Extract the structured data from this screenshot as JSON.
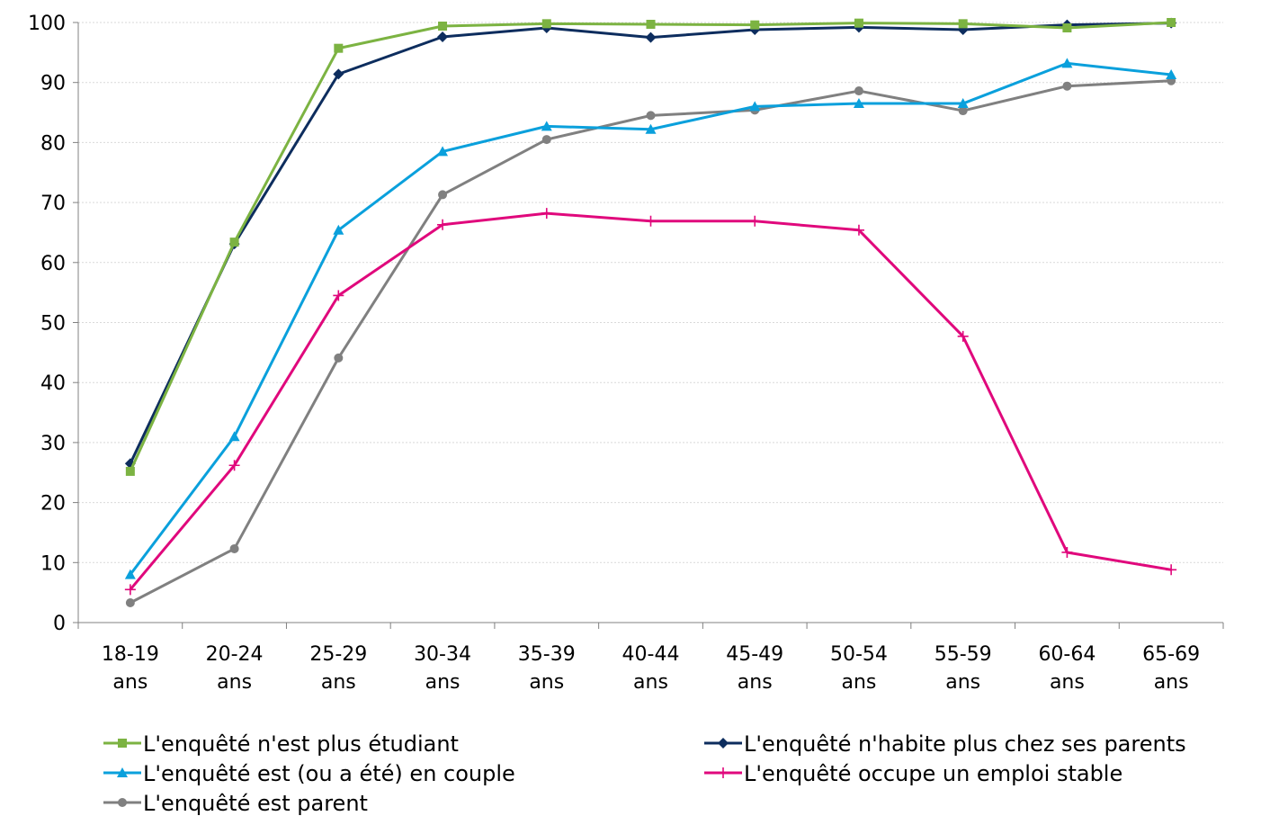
{
  "chart_data": {
    "type": "line",
    "categories": [
      [
        "18-19",
        "ans"
      ],
      [
        "20-24",
        "ans"
      ],
      [
        "25-29",
        "ans"
      ],
      [
        "30-34",
        "ans"
      ],
      [
        "35-39",
        "ans"
      ],
      [
        "40-44",
        "ans"
      ],
      [
        "45-49",
        "ans"
      ],
      [
        "50-54",
        "ans"
      ],
      [
        "55-59",
        "ans"
      ],
      [
        "60-64",
        "ans"
      ],
      [
        "65-69",
        "ans"
      ]
    ],
    "ylim": [
      0,
      100
    ],
    "yticks": [
      0,
      10,
      20,
      30,
      40,
      50,
      60,
      70,
      80,
      90,
      100
    ],
    "grid": "horizontal",
    "legend_position": "bottom",
    "series": [
      {
        "name": "L'enquêté n'est plus étudiant",
        "color": "#7cb342",
        "marker": "square",
        "values": [
          25.2,
          63.4,
          95.7,
          99.4,
          99.8,
          99.7,
          99.6,
          99.9,
          99.8,
          99.1,
          100
        ]
      },
      {
        "name": "L'enquêté n'habite plus chez ses parents",
        "color": "#0d2d5e",
        "marker": "diamond",
        "values": [
          26.5,
          63.1,
          91.4,
          97.6,
          99.1,
          97.5,
          98.8,
          99.2,
          98.8,
          99.6,
          99.9
        ]
      },
      {
        "name": "L'enquêté est (ou a été) en couple",
        "color": "#0aa0dc",
        "marker": "triangle",
        "values": [
          8.0,
          31.0,
          65.4,
          78.5,
          82.7,
          82.2,
          86.0,
          86.5,
          86.5,
          93.2,
          91.3
        ]
      },
      {
        "name": "L'enquêté occupe un emploi stable",
        "color": "#e0087c",
        "marker": "plus",
        "values": [
          5.5,
          26.2,
          54.5,
          66.3,
          68.2,
          66.9,
          66.9,
          65.4,
          47.7,
          11.7,
          8.8
        ]
      },
      {
        "name": "L'enquêté est parent",
        "color": "#808080",
        "marker": "circle",
        "values": [
          3.3,
          12.3,
          44.1,
          71.3,
          80.5,
          84.5,
          85.4,
          88.6,
          85.3,
          89.4,
          90.3
        ]
      }
    ]
  }
}
